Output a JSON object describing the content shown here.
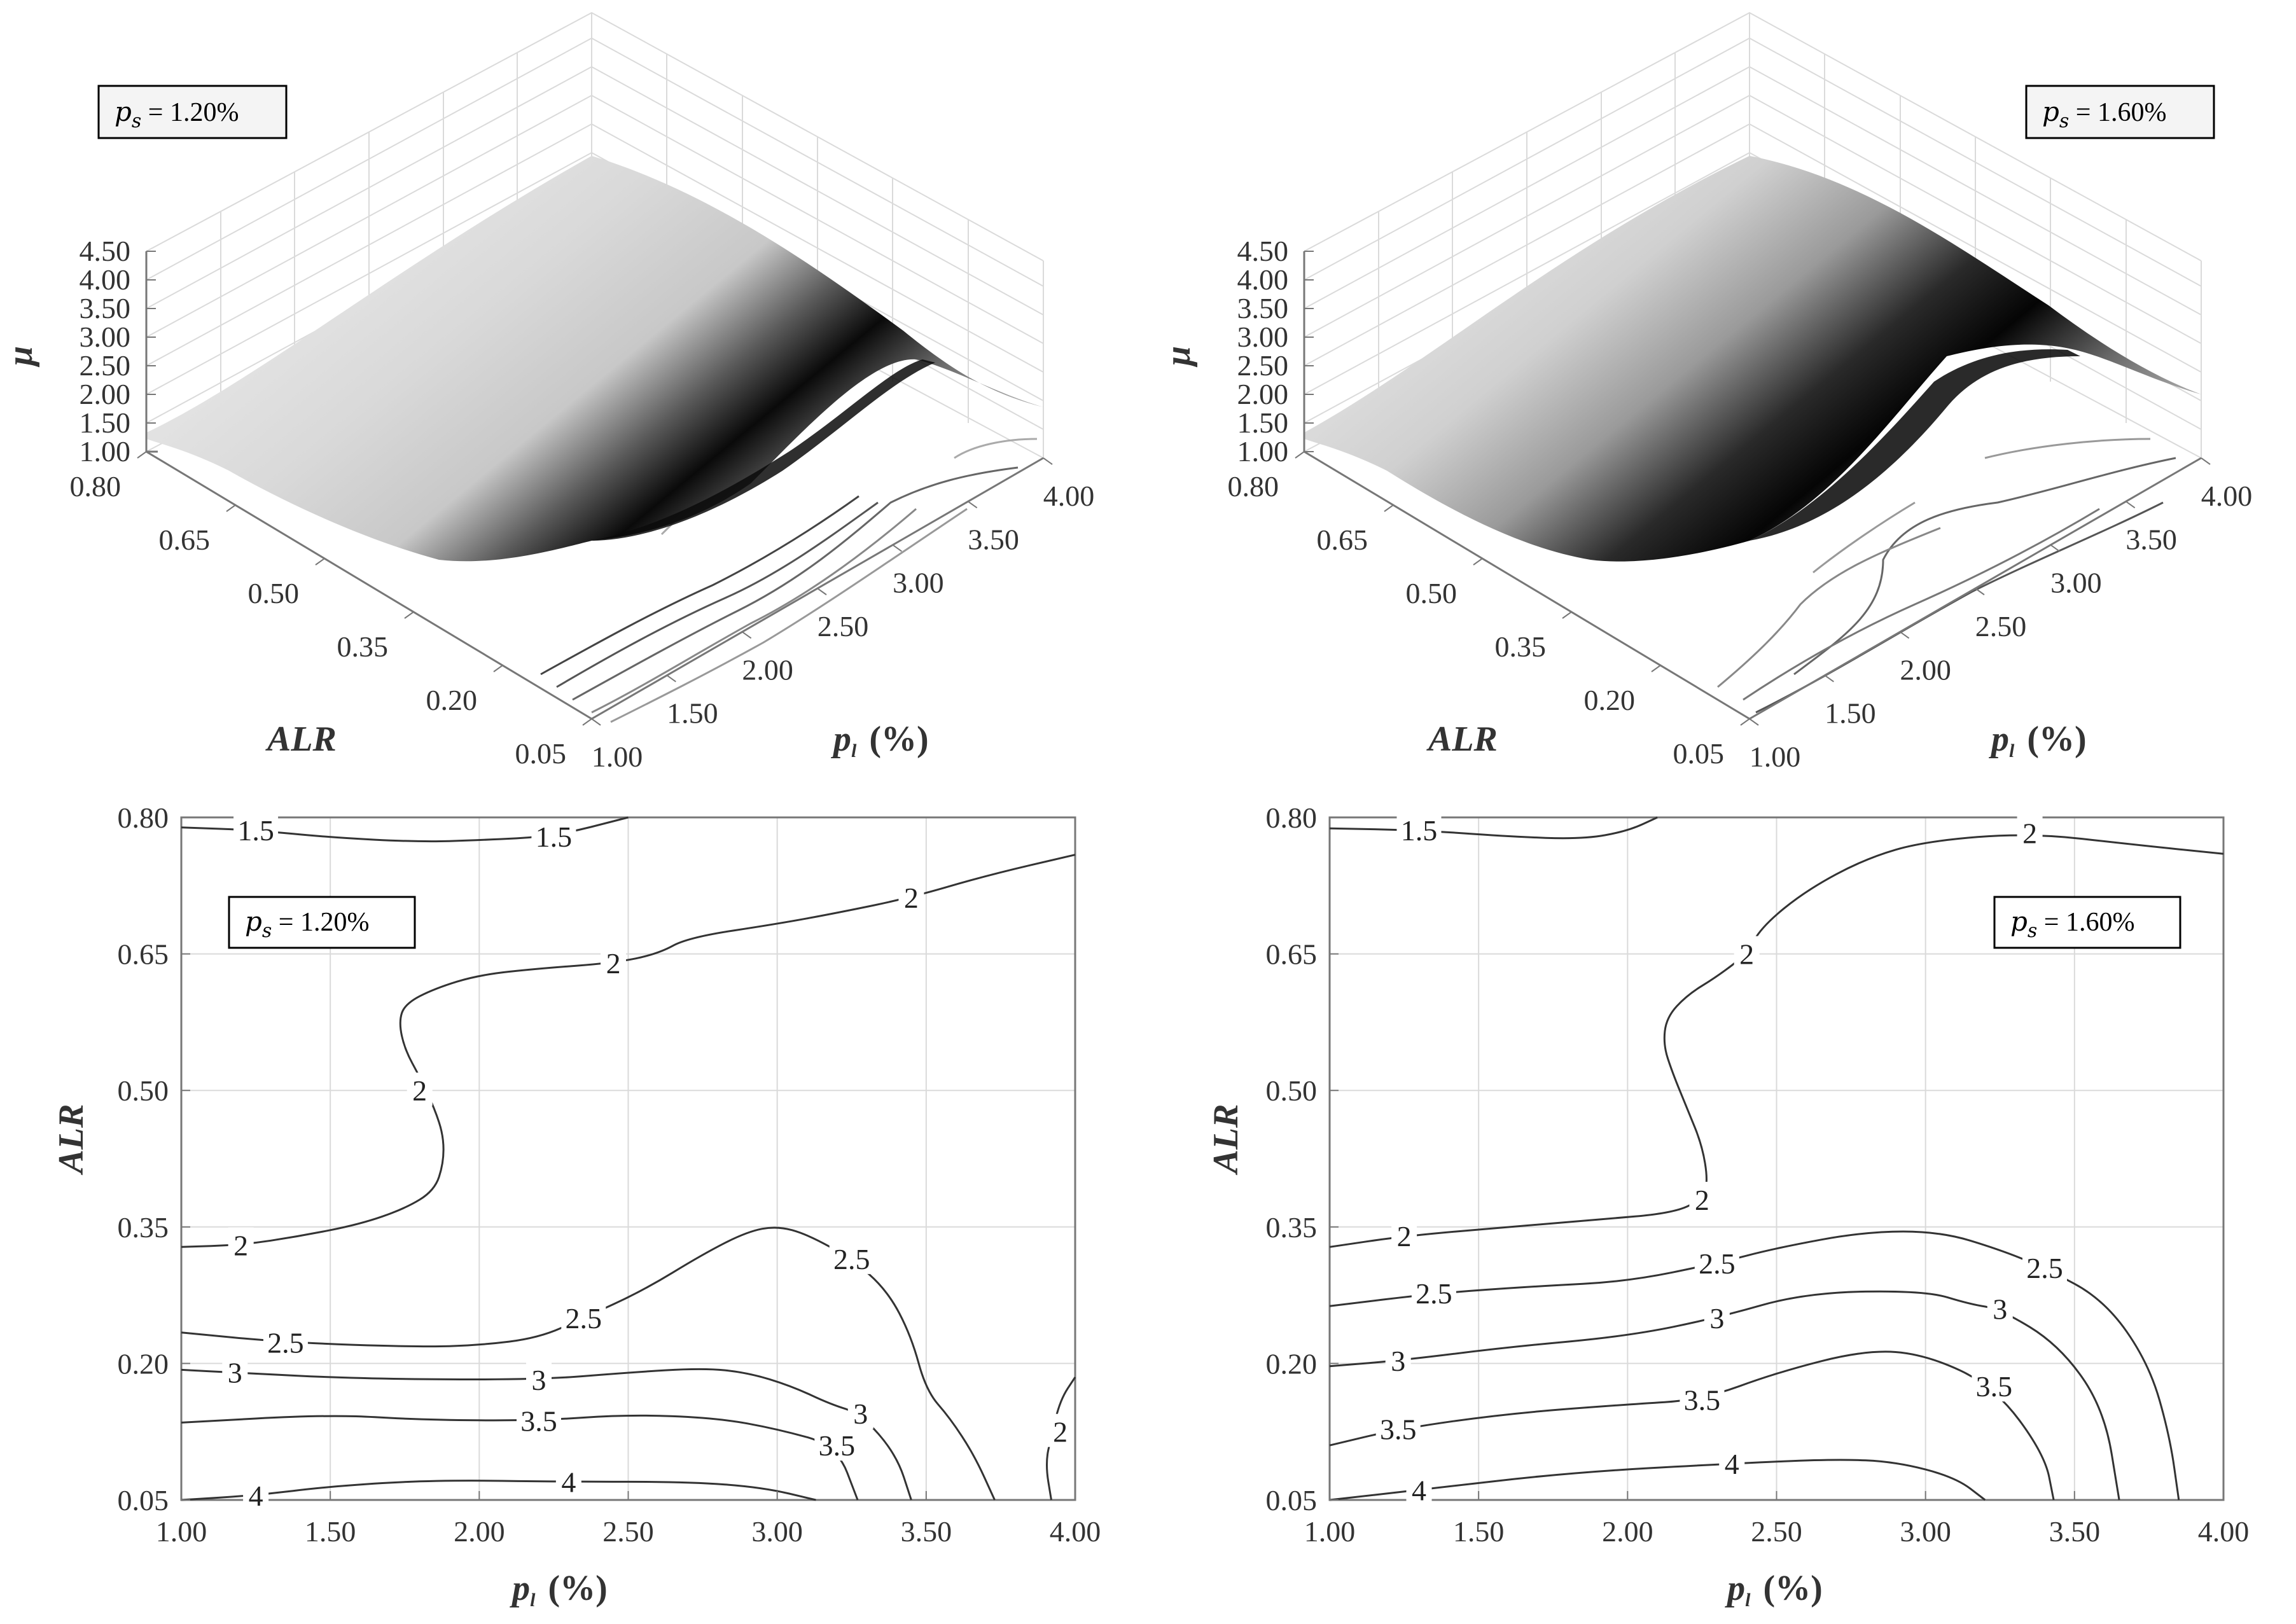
{
  "colors": {
    "axis": "#777777",
    "grid": "#dadada",
    "contour": "#333333",
    "surface_light": "#f4f4f4",
    "surface_dark": "#0a0a0a"
  },
  "chart_data": [
    {
      "type": "surface",
      "panel": "top-left",
      "legend": {
        "symbol": "p",
        "subscript": "s",
        "text": " = 1.20%"
      },
      "xlabel": {
        "symbol": "p",
        "subscript": "l",
        "unit": "(%)"
      },
      "ylabel": "ALR",
      "zlabel": "μ",
      "x_ticks": [
        "1.00",
        "1.50",
        "2.00",
        "2.50",
        "3.00",
        "3.50",
        "4.00"
      ],
      "y_ticks": [
        "0.05",
        "0.20",
        "0.35",
        "0.50",
        "0.65",
        "0.80"
      ],
      "z_ticks": [
        "1.00",
        "1.50",
        "2.00",
        "2.50",
        "3.00",
        "3.50",
        "4.00",
        "4.50"
      ],
      "xlim": [
        1.0,
        4.0
      ],
      "ylim": [
        0.05,
        0.8
      ],
      "zlim": [
        1.0,
        4.5
      ]
    },
    {
      "type": "surface",
      "panel": "top-right",
      "legend": {
        "symbol": "p",
        "subscript": "s",
        "text": " = 1.60%"
      },
      "xlabel": {
        "symbol": "p",
        "subscript": "l",
        "unit": "(%)"
      },
      "ylabel": "ALR",
      "zlabel": "μ",
      "x_ticks": [
        "1.00",
        "1.50",
        "2.00",
        "2.50",
        "3.00",
        "3.50",
        "4.00"
      ],
      "y_ticks": [
        "0.05",
        "0.20",
        "0.35",
        "0.50",
        "0.65",
        "0.80"
      ],
      "z_ticks": [
        "1.00",
        "1.50",
        "2.00",
        "2.50",
        "3.00",
        "3.50",
        "4.00",
        "4.50"
      ],
      "xlim": [
        1.0,
        4.0
      ],
      "ylim": [
        0.05,
        0.8
      ],
      "zlim": [
        1.0,
        4.5
      ]
    },
    {
      "type": "contour",
      "panel": "bottom-left",
      "legend": {
        "symbol": "p",
        "subscript": "s",
        "text": " = 1.20%"
      },
      "xlabel": {
        "symbol": "p",
        "subscript": "l",
        "unit": "(%)"
      },
      "ylabel": "ALR",
      "x_ticks": [
        "1.00",
        "1.50",
        "2.00",
        "2.50",
        "3.00",
        "3.50",
        "4.00"
      ],
      "y_ticks": [
        "0.05",
        "0.20",
        "0.35",
        "0.50",
        "0.65",
        "0.80"
      ],
      "xlim": [
        1.0,
        4.0
      ],
      "ylim": [
        0.05,
        0.8
      ],
      "levels": [
        {
          "level": "1.5",
          "labels": [
            [
              1.25,
              0.786
            ],
            [
              2.25,
              0.779
            ]
          ],
          "points": [
            [
              1.0,
              0.789
            ],
            [
              1.25,
              0.786
            ],
            [
              1.5,
              0.778
            ],
            [
              1.8,
              0.773
            ],
            [
              2.0,
              0.775
            ],
            [
              2.25,
              0.779
            ],
            [
              2.5,
              0.8
            ]
          ]
        },
        {
          "level": "2",
          "labels": [
            [
              2.45,
              0.64
            ],
            [
              3.45,
              0.712
            ]
          ],
          "points": [
            [
              4.0,
              0.759
            ],
            [
              3.7,
              0.736
            ],
            [
              3.45,
              0.712
            ],
            [
              3.2,
              0.695
            ],
            [
              3.0,
              0.683
            ],
            [
              2.7,
              0.668
            ],
            [
              2.6,
              0.65
            ],
            [
              2.45,
              0.64
            ],
            [
              2.2,
              0.634
            ],
            [
              2.0,
              0.627
            ],
            [
              1.85,
              0.612
            ],
            [
              1.75,
              0.595
            ],
            [
              1.73,
              0.575
            ],
            [
              1.75,
              0.545
            ],
            [
              1.8,
              0.515
            ],
            [
              1.85,
              0.48
            ],
            [
              1.88,
              0.45
            ],
            [
              1.88,
              0.42
            ],
            [
              1.85,
              0.39
            ],
            [
              1.75,
              0.37
            ],
            [
              1.6,
              0.353
            ],
            [
              1.4,
              0.34
            ],
            [
              1.2,
              0.33
            ],
            [
              1.0,
              0.328
            ]
          ]
        },
        {
          "level": "2",
          "labels": [
            [
              1.8,
              0.5
            ],
            [
              1.2,
              0.33
            ]
          ],
          "points": []
        },
        {
          "level": "2",
          "labels": [
            [
              3.95,
              0.125
            ]
          ],
          "points": [
            [
              4.0,
              0.185
            ],
            [
              3.95,
              0.16
            ],
            [
              3.92,
              0.12
            ],
            [
              3.9,
              0.09
            ],
            [
              3.92,
              0.05
            ]
          ]
        },
        {
          "level": "2.5",
          "labels": [
            [
              1.35,
              0.223
            ],
            [
              2.35,
              0.25
            ],
            [
              3.25,
              0.315
            ]
          ],
          "points": [
            [
              1.0,
              0.234
            ],
            [
              1.35,
              0.223
            ],
            [
              1.8,
              0.218
            ],
            [
              2.0,
              0.22
            ],
            [
              2.2,
              0.228
            ],
            [
              2.35,
              0.25
            ],
            [
              2.55,
              0.28
            ],
            [
              2.75,
              0.32
            ],
            [
              2.9,
              0.345
            ],
            [
              3.0,
              0.351
            ],
            [
              3.1,
              0.342
            ],
            [
              3.25,
              0.315
            ],
            [
              3.37,
              0.28
            ],
            [
              3.45,
              0.23
            ],
            [
              3.5,
              0.17
            ],
            [
              3.58,
              0.14
            ],
            [
              3.66,
              0.1
            ],
            [
              3.73,
              0.05
            ]
          ]
        },
        {
          "level": "3",
          "labels": [
            [
              1.18,
              0.19
            ],
            [
              2.2,
              0.182
            ],
            [
              3.28,
              0.145
            ]
          ],
          "points": [
            [
              1.0,
              0.193
            ],
            [
              1.18,
              0.19
            ],
            [
              1.6,
              0.183
            ],
            [
              2.2,
              0.182
            ],
            [
              2.5,
              0.19
            ],
            [
              2.75,
              0.195
            ],
            [
              2.9,
              0.19
            ],
            [
              3.05,
              0.175
            ],
            [
              3.18,
              0.155
            ],
            [
              3.28,
              0.145
            ],
            [
              3.4,
              0.1
            ],
            [
              3.45,
              0.05
            ]
          ]
        },
        {
          "level": "3.5",
          "labels": [
            [
              2.2,
              0.137
            ],
            [
              3.2,
              0.11
            ]
          ],
          "points": [
            [
              1.0,
              0.135
            ],
            [
              1.5,
              0.144
            ],
            [
              1.8,
              0.138
            ],
            [
              2.2,
              0.137
            ],
            [
              2.5,
              0.144
            ],
            [
              2.8,
              0.14
            ],
            [
              3.0,
              0.128
            ],
            [
              3.2,
              0.11
            ],
            [
              3.27,
              0.05
            ]
          ]
        },
        {
          "level": "4",
          "labels": [
            [
              1.25,
              0.055
            ],
            [
              2.3,
              0.07
            ]
          ],
          "points": [
            [
              1.0,
              0.05
            ],
            [
              1.25,
              0.055
            ],
            [
              1.5,
              0.065
            ],
            [
              1.85,
              0.072
            ],
            [
              2.3,
              0.07
            ],
            [
              2.7,
              0.07
            ],
            [
              2.95,
              0.064
            ],
            [
              3.13,
              0.05
            ]
          ]
        }
      ]
    },
    {
      "type": "contour",
      "panel": "bottom-right",
      "legend": {
        "symbol": "p",
        "subscript": "s",
        "text": " = 1.60%"
      },
      "xlabel": {
        "symbol": "p",
        "subscript": "l",
        "unit": "(%)"
      },
      "ylabel": "ALR",
      "x_ticks": [
        "1.00",
        "1.50",
        "2.00",
        "2.50",
        "3.00",
        "3.50",
        "4.00"
      ],
      "y_ticks": [
        "0.05",
        "0.20",
        "0.35",
        "0.50",
        "0.65",
        "0.80"
      ],
      "xlim": [
        1.0,
        4.0
      ],
      "ylim": [
        0.05,
        0.8
      ],
      "levels": [
        {
          "level": "1.5",
          "labels": [
            [
              1.3,
              0.786
            ]
          ],
          "points": [
            [
              1.0,
              0.788
            ],
            [
              1.3,
              0.786
            ],
            [
              1.6,
              0.779
            ],
            [
              1.85,
              0.776
            ],
            [
              2.0,
              0.785
            ],
            [
              2.1,
              0.8
            ]
          ]
        },
        {
          "level": "2",
          "labels": [
            [
              3.35,
              0.783
            ],
            [
              2.4,
              0.65
            ],
            [
              2.25,
              0.38
            ],
            [
              1.25,
              0.34
            ]
          ],
          "points": [
            [
              4.0,
              0.76
            ],
            [
              3.7,
              0.77
            ],
            [
              3.35,
              0.783
            ],
            [
              3.0,
              0.774
            ],
            [
              2.8,
              0.755
            ],
            [
              2.6,
              0.72
            ],
            [
              2.45,
              0.68
            ],
            [
              2.4,
              0.65
            ],
            [
              2.3,
              0.625
            ],
            [
              2.2,
              0.605
            ],
            [
              2.13,
              0.58
            ],
            [
              2.12,
              0.55
            ],
            [
              2.15,
              0.52
            ],
            [
              2.2,
              0.48
            ],
            [
              2.25,
              0.44
            ],
            [
              2.27,
              0.4
            ],
            [
              2.25,
              0.38
            ],
            [
              2.15,
              0.365
            ],
            [
              1.9,
              0.358
            ],
            [
              1.6,
              0.35
            ],
            [
              1.25,
              0.34
            ],
            [
              1.0,
              0.328
            ]
          ]
        },
        {
          "level": "2.5",
          "labels": [
            [
              1.35,
              0.277
            ],
            [
              2.3,
              0.31
            ],
            [
              3.4,
              0.305
            ]
          ],
          "points": [
            [
              1.0,
              0.263
            ],
            [
              1.35,
              0.277
            ],
            [
              1.7,
              0.285
            ],
            [
              2.0,
              0.29
            ],
            [
              2.3,
              0.31
            ],
            [
              2.5,
              0.327
            ],
            [
              2.8,
              0.345
            ],
            [
              3.05,
              0.345
            ],
            [
              3.25,
              0.325
            ],
            [
              3.4,
              0.305
            ],
            [
              3.6,
              0.27
            ],
            [
              3.75,
              0.2
            ],
            [
              3.82,
              0.12
            ],
            [
              3.85,
              0.05
            ]
          ]
        },
        {
          "level": "3",
          "labels": [
            [
              1.23,
              0.203
            ],
            [
              2.3,
              0.25
            ],
            [
              3.25,
              0.26
            ]
          ],
          "points": [
            [
              1.0,
              0.197
            ],
            [
              1.23,
              0.203
            ],
            [
              1.6,
              0.218
            ],
            [
              2.0,
              0.23
            ],
            [
              2.3,
              0.25
            ],
            [
              2.6,
              0.278
            ],
            [
              3.0,
              0.28
            ],
            [
              3.15,
              0.265
            ],
            [
              3.25,
              0.26
            ],
            [
              3.45,
              0.22
            ],
            [
              3.6,
              0.15
            ],
            [
              3.65,
              0.05
            ]
          ]
        },
        {
          "level": "3.5",
          "labels": [
            [
              1.23,
              0.128
            ],
            [
              2.25,
              0.16
            ],
            [
              3.23,
              0.175
            ]
          ],
          "points": [
            [
              1.0,
              0.11
            ],
            [
              1.23,
              0.128
            ],
            [
              1.6,
              0.145
            ],
            [
              2.0,
              0.155
            ],
            [
              2.25,
              0.16
            ],
            [
              2.5,
              0.19
            ],
            [
              2.8,
              0.215
            ],
            [
              3.0,
              0.21
            ],
            [
              3.23,
              0.175
            ],
            [
              3.4,
              0.1
            ],
            [
              3.43,
              0.05
            ]
          ]
        },
        {
          "level": "4",
          "labels": [
            [
              1.3,
              0.061
            ],
            [
              2.35,
              0.09
            ]
          ],
          "points": [
            [
              1.0,
              0.05
            ],
            [
              1.3,
              0.061
            ],
            [
              1.8,
              0.08
            ],
            [
              2.35,
              0.09
            ],
            [
              2.7,
              0.095
            ],
            [
              2.9,
              0.092
            ],
            [
              3.1,
              0.075
            ],
            [
              3.2,
              0.05
            ]
          ]
        }
      ]
    }
  ]
}
